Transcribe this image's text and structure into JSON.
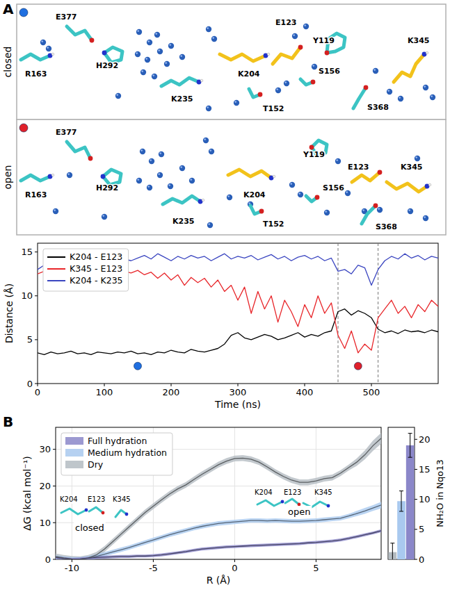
{
  "panel_labels": [
    "A",
    "B"
  ],
  "structures": [
    {
      "label": "closed",
      "color": "#1f6fe0",
      "residues": [
        {
          "name": "E377",
          "color": "#3cc4c4"
        },
        {
          "name": "R163",
          "color": "#3cc4c4"
        },
        {
          "name": "H292",
          "color": "#3cc4c4"
        },
        {
          "name": "K235",
          "color": "#3cc4c4"
        },
        {
          "name": "K204",
          "color": "#f2c21b"
        },
        {
          "name": "E123",
          "color": "#f2c21b"
        },
        {
          "name": "Y119",
          "color": "#3cc4c4"
        },
        {
          "name": "S156",
          "color": "#3cc4c4"
        },
        {
          "name": "T152",
          "color": "#3cc4c4"
        },
        {
          "name": "K345",
          "color": "#f2c21b"
        },
        {
          "name": "S368",
          "color": "#3cc4c4"
        }
      ]
    },
    {
      "label": "open",
      "color": "#e0202a",
      "residues": [
        {
          "name": "E377",
          "color": "#3cc4c4"
        },
        {
          "name": "R163",
          "color": "#3cc4c4"
        },
        {
          "name": "H292",
          "color": "#3cc4c4"
        },
        {
          "name": "K235",
          "color": "#3cc4c4"
        },
        {
          "name": "K204",
          "color": "#f2c21b"
        },
        {
          "name": "E123",
          "color": "#f2c21b"
        },
        {
          "name": "Y119",
          "color": "#3cc4c4"
        },
        {
          "name": "S156",
          "color": "#3cc4c4"
        },
        {
          "name": "T152",
          "color": "#3cc4c4"
        },
        {
          "name": "K345",
          "color": "#f2c21b"
        },
        {
          "name": "S368",
          "color": "#3cc4c4"
        }
      ]
    }
  ],
  "chart_data": [
    {
      "type": "line",
      "xlabel": "Time (ns)",
      "ylabel": "Distance (Å)",
      "x": [
        0,
        10,
        20,
        30,
        40,
        50,
        60,
        70,
        80,
        90,
        100,
        110,
        120,
        130,
        140,
        150,
        160,
        170,
        180,
        190,
        200,
        210,
        220,
        230,
        240,
        250,
        260,
        270,
        280,
        290,
        300,
        310,
        320,
        330,
        340,
        350,
        360,
        370,
        380,
        390,
        400,
        410,
        420,
        430,
        440,
        450,
        460,
        470,
        480,
        490,
        500,
        510,
        520,
        530,
        540,
        550,
        560,
        570,
        580,
        590,
        600
      ],
      "xlim": [
        0,
        600
      ],
      "xticks": [
        0,
        100,
        200,
        300,
        400,
        500
      ],
      "ylim": [
        0,
        16
      ],
      "yticks": [
        0,
        5,
        10,
        15
      ],
      "legend": "upper left",
      "series": [
        {
          "name": "K204 - E123",
          "color": "#000000",
          "values": [
            3.5,
            3.3,
            3.6,
            3.4,
            3.5,
            3.7,
            3.4,
            3.5,
            3.3,
            3.6,
            3.5,
            3.4,
            3.6,
            3.5,
            3.7,
            3.4,
            3.5,
            3.3,
            3.6,
            3.5,
            3.8,
            3.6,
            3.5,
            3.9,
            3.7,
            3.6,
            3.8,
            4.0,
            4.5,
            5.5,
            5.8,
            5.2,
            5.0,
            5.3,
            5.6,
            5.4,
            5.0,
            5.2,
            5.5,
            5.8,
            5.3,
            5.6,
            5.4,
            5.8,
            6.0,
            8.2,
            8.5,
            7.8,
            8.3,
            8.0,
            7.5,
            6.2,
            5.8,
            6.0,
            5.7,
            6.1,
            5.9,
            6.0,
            5.8,
            6.1,
            5.9
          ]
        },
        {
          "name": "K345 - E123",
          "color": "#e8262a",
          "values": [
            12.5,
            12.8,
            12.2,
            13.0,
            12.6,
            12.9,
            12.4,
            13.2,
            12.7,
            12.5,
            12.9,
            12.3,
            13.4,
            12.8,
            12.6,
            12.9,
            12.4,
            12.7,
            12.0,
            12.6,
            11.8,
            12.4,
            11.2,
            12.1,
            11.5,
            12.0,
            11.0,
            11.8,
            10.5,
            11.2,
            9.5,
            11.0,
            8.0,
            10.5,
            8.5,
            10.0,
            7.0,
            9.5,
            8.2,
            6.5,
            9.0,
            7.5,
            10.0,
            8.0,
            9.2,
            5.5,
            4.0,
            6.0,
            3.5,
            4.5,
            3.8,
            7.5,
            8.5,
            9.5,
            8.0,
            8.8,
            7.5,
            9.0,
            8.2,
            9.5,
            8.8
          ]
        },
        {
          "name": "K204 - K235",
          "color": "#3a45c0",
          "values": [
            13.0,
            13.5,
            12.8,
            13.2,
            13.6,
            12.9,
            13.4,
            13.1,
            12.8,
            13.5,
            13.2,
            14.8,
            14.5,
            14.2,
            14.0,
            14.3,
            14.6,
            14.2,
            14.8,
            14.4,
            14.0,
            14.5,
            14.2,
            14.6,
            14.3,
            14.5,
            14.0,
            14.4,
            14.8,
            14.2,
            14.5,
            14.3,
            14.6,
            14.1,
            14.4,
            14.7,
            14.2,
            14.5,
            14.0,
            14.4,
            14.6,
            14.2,
            14.5,
            14.0,
            14.3,
            12.8,
            13.0,
            12.5,
            13.5,
            13.2,
            11.2,
            13.0,
            14.0,
            14.5,
            14.2,
            14.8,
            14.3,
            14.6,
            14.1,
            14.5,
            14.3
          ]
        }
      ],
      "markers": [
        {
          "x": 150,
          "y": 2,
          "color": "#1f6fe0"
        },
        {
          "x": 480,
          "y": 2,
          "color": "#e0202a"
        }
      ],
      "vlines": [
        450,
        510
      ]
    },
    {
      "type": "line",
      "xlabel": "R (Å)",
      "ylabel": "ΔG (kcal mol⁻¹)",
      "x": [
        -11,
        -10.5,
        -10,
        -9.5,
        -9,
        -8.5,
        -8,
        -7.5,
        -7,
        -6.5,
        -6,
        -5.5,
        -5,
        -4.5,
        -4,
        -3.5,
        -3,
        -2.5,
        -2,
        -1.5,
        -1,
        -0.5,
        0,
        0.5,
        1,
        1.5,
        2,
        2.5,
        3,
        3.5,
        4,
        4.5,
        5,
        5.5,
        6,
        6.5,
        7,
        7.5,
        8,
        8.5,
        9
      ],
      "xlim": [
        -11,
        9
      ],
      "xticks": [
        -10,
        -5,
        0,
        5
      ],
      "ylim": [
        0,
        36
      ],
      "yticks": [
        0,
        10,
        20,
        30
      ],
      "grid": true,
      "legend": "upper left",
      "series": [
        {
          "name": "Full hydration",
          "color": "#8b87c9",
          "values": [
            0.5,
            0.2,
            0,
            0.1,
            0.3,
            0.5,
            0.6,
            0.7,
            0.8,
            0.8,
            0.9,
            0.9,
            1.0,
            1.2,
            1.5,
            1.8,
            2.1,
            2.5,
            2.8,
            3.0,
            3.2,
            3.4,
            3.5,
            3.6,
            3.7,
            3.8,
            3.9,
            4.0,
            4.1,
            4.2,
            4.3,
            4.5,
            4.6,
            4.8,
            5.0,
            5.3,
            5.7,
            6.2,
            6.7,
            7.2,
            7.8
          ],
          "error": [
            0.4,
            0.4,
            0.4,
            0.4,
            0.4,
            0.4,
            0.4,
            0.4,
            0.4,
            0.4,
            0.4,
            0.4,
            0.4,
            0.4,
            0.4,
            0.4,
            0.4,
            0.4,
            0.4,
            0.4,
            0.4,
            0.4,
            0.4,
            0.4,
            0.4,
            0.4,
            0.4,
            0.4,
            0.4,
            0.4,
            0.4,
            0.4,
            0.4,
            0.4,
            0.4,
            0.4,
            0.4,
            0.4,
            0.4,
            0.4,
            0.4
          ]
        },
        {
          "name": "Medium hydration",
          "color": "#a9c9ef",
          "values": [
            0.5,
            0.2,
            0,
            0,
            0.3,
            0.8,
            1.4,
            2.0,
            2.6,
            3.2,
            3.9,
            4.6,
            5.3,
            6.0,
            6.7,
            7.3,
            7.9,
            8.5,
            9.0,
            9.4,
            9.8,
            10.0,
            10.2,
            10.4,
            10.6,
            10.6,
            10.5,
            10.6,
            10.5,
            10.4,
            10.4,
            10.5,
            10.6,
            10.8,
            11.0,
            11.2,
            11.8,
            12.5,
            13.2,
            14.0,
            14.8
          ],
          "error": [
            0.6,
            0.6,
            0.6,
            0.6,
            0.6,
            0.6,
            0.6,
            0.6,
            0.6,
            0.6,
            0.6,
            0.6,
            0.6,
            0.6,
            0.6,
            0.6,
            0.6,
            0.6,
            0.6,
            0.6,
            0.6,
            0.6,
            0.6,
            0.6,
            0.6,
            0.6,
            0.6,
            0.6,
            0.6,
            0.6,
            0.6,
            0.6,
            0.6,
            0.6,
            0.6,
            0.6,
            0.6,
            0.7,
            0.8,
            0.8,
            0.9
          ]
        },
        {
          "name": "Dry",
          "color": "#b4bcc2",
          "values": [
            0.8,
            0.4,
            0.1,
            0,
            0.4,
            1.2,
            2.8,
            4.8,
            6.8,
            8.8,
            10.8,
            12.8,
            14.5,
            16.2,
            17.8,
            19.2,
            20.3,
            21.8,
            23.2,
            24.5,
            25.8,
            26.8,
            27.5,
            27.6,
            27.3,
            26.5,
            25.2,
            23.8,
            22.6,
            21.6,
            21.0,
            21.0,
            21.4,
            22.0,
            22.3,
            23.5,
            25.0,
            26.5,
            28.5,
            31.0,
            33.0
          ],
          "error": [
            0.8,
            0.8,
            0.8,
            0.8,
            0.8,
            0.8,
            0.8,
            0.8,
            0.8,
            0.8,
            0.8,
            0.8,
            0.8,
            0.8,
            0.8,
            0.8,
            0.8,
            0.8,
            0.8,
            0.8,
            0.8,
            0.8,
            0.8,
            0.8,
            0.8,
            0.8,
            0.8,
            0.8,
            0.8,
            0.8,
            0.8,
            0.8,
            0.8,
            0.8,
            0.8,
            0.8,
            0.8,
            1.0,
            1.2,
            1.4,
            1.5
          ]
        }
      ],
      "annotations": [
        {
          "label": "closed",
          "residues": [
            "K204",
            "E123",
            "K345"
          ]
        },
        {
          "label": "open",
          "residues": [
            "K204",
            "E123",
            "K345"
          ]
        }
      ]
    },
    {
      "type": "bar",
      "ylabel": "NH₂O in Nqo13",
      "categories": [
        null,
        null,
        null
      ],
      "values": [
        1.2,
        9.7,
        19.0
      ],
      "error": [
        1.5,
        1.7,
        2.0
      ],
      "colors": [
        "#b4bcc2",
        "#a9c9ef",
        "#8b87c9"
      ],
      "ylim": [
        0,
        22
      ],
      "yticks": [
        0,
        5,
        10,
        15,
        20
      ]
    }
  ]
}
